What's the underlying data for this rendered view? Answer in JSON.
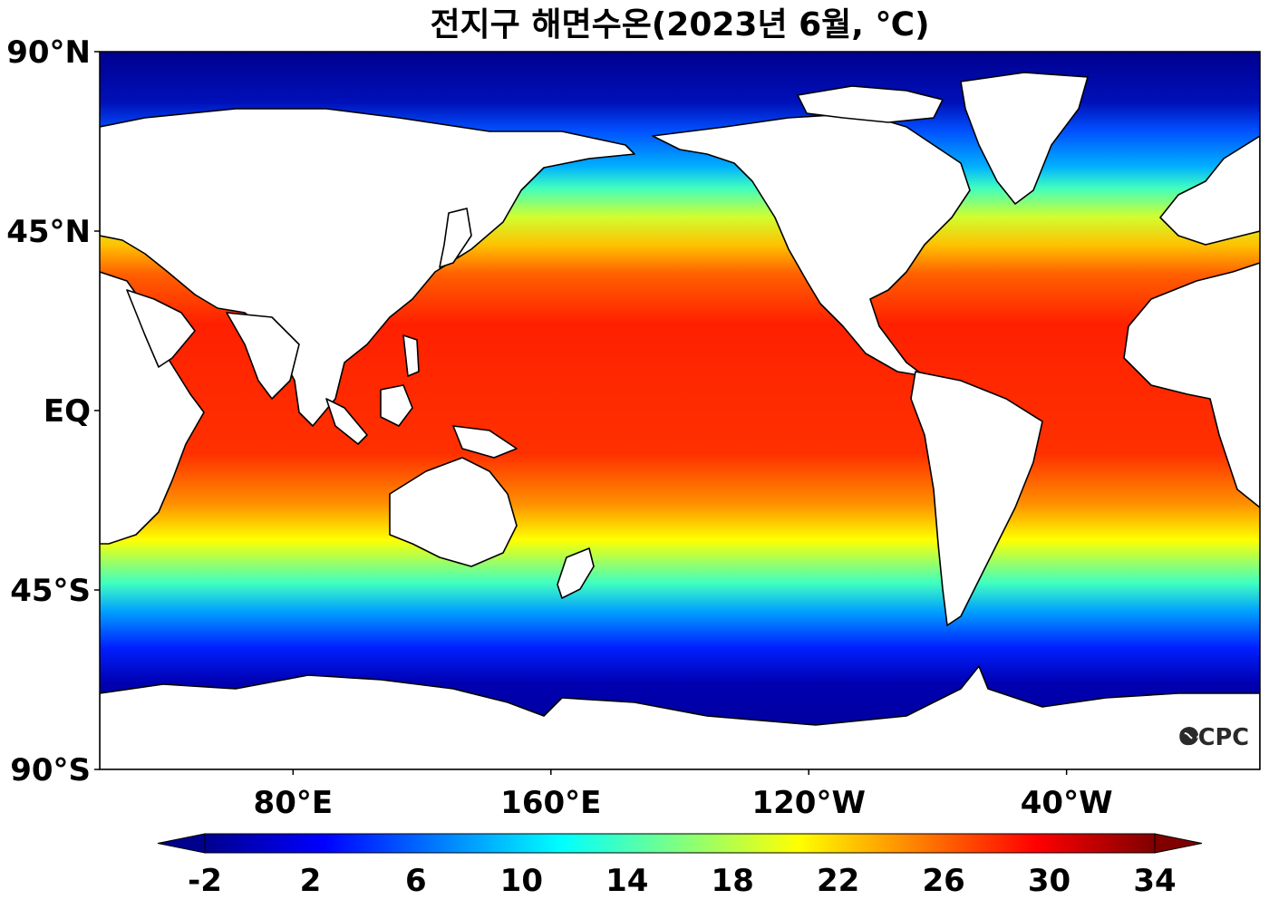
{
  "title": "전지구 해면수온(2023년 6월, ℃)",
  "map": {
    "projection": "equirectangular",
    "lon_range": [
      20,
      380
    ],
    "lat_range": [
      -90,
      90
    ],
    "lat_ticks": [
      {
        "lat": 90,
        "label": "90°N"
      },
      {
        "lat": 45,
        "label": "45°N"
      },
      {
        "lat": 0,
        "label": "EQ"
      },
      {
        "lat": -45,
        "label": "45°S"
      },
      {
        "lat": -90,
        "label": "90°S"
      }
    ],
    "lon_ticks": [
      {
        "lon": 80,
        "label": "80°E"
      },
      {
        "lon": 160,
        "label": "160°E"
      },
      {
        "lon": 240,
        "label": "120°W"
      },
      {
        "lon": 320,
        "label": "40°W"
      }
    ],
    "land_color": "#ffffff",
    "coastline_color": "#000000"
  },
  "colorbar": {
    "labels": [
      "-2",
      "2",
      "6",
      "10",
      "14",
      "18",
      "22",
      "26",
      "30",
      "34"
    ],
    "min": -2,
    "max": 34,
    "extend": "both",
    "colormap": [
      "#00008f",
      "#0000ff",
      "#0080ff",
      "#00ffff",
      "#80ff80",
      "#ffff00",
      "#ff8000",
      "#ff0000",
      "#800000"
    ]
  },
  "logo": {
    "text": "OCPC"
  }
}
